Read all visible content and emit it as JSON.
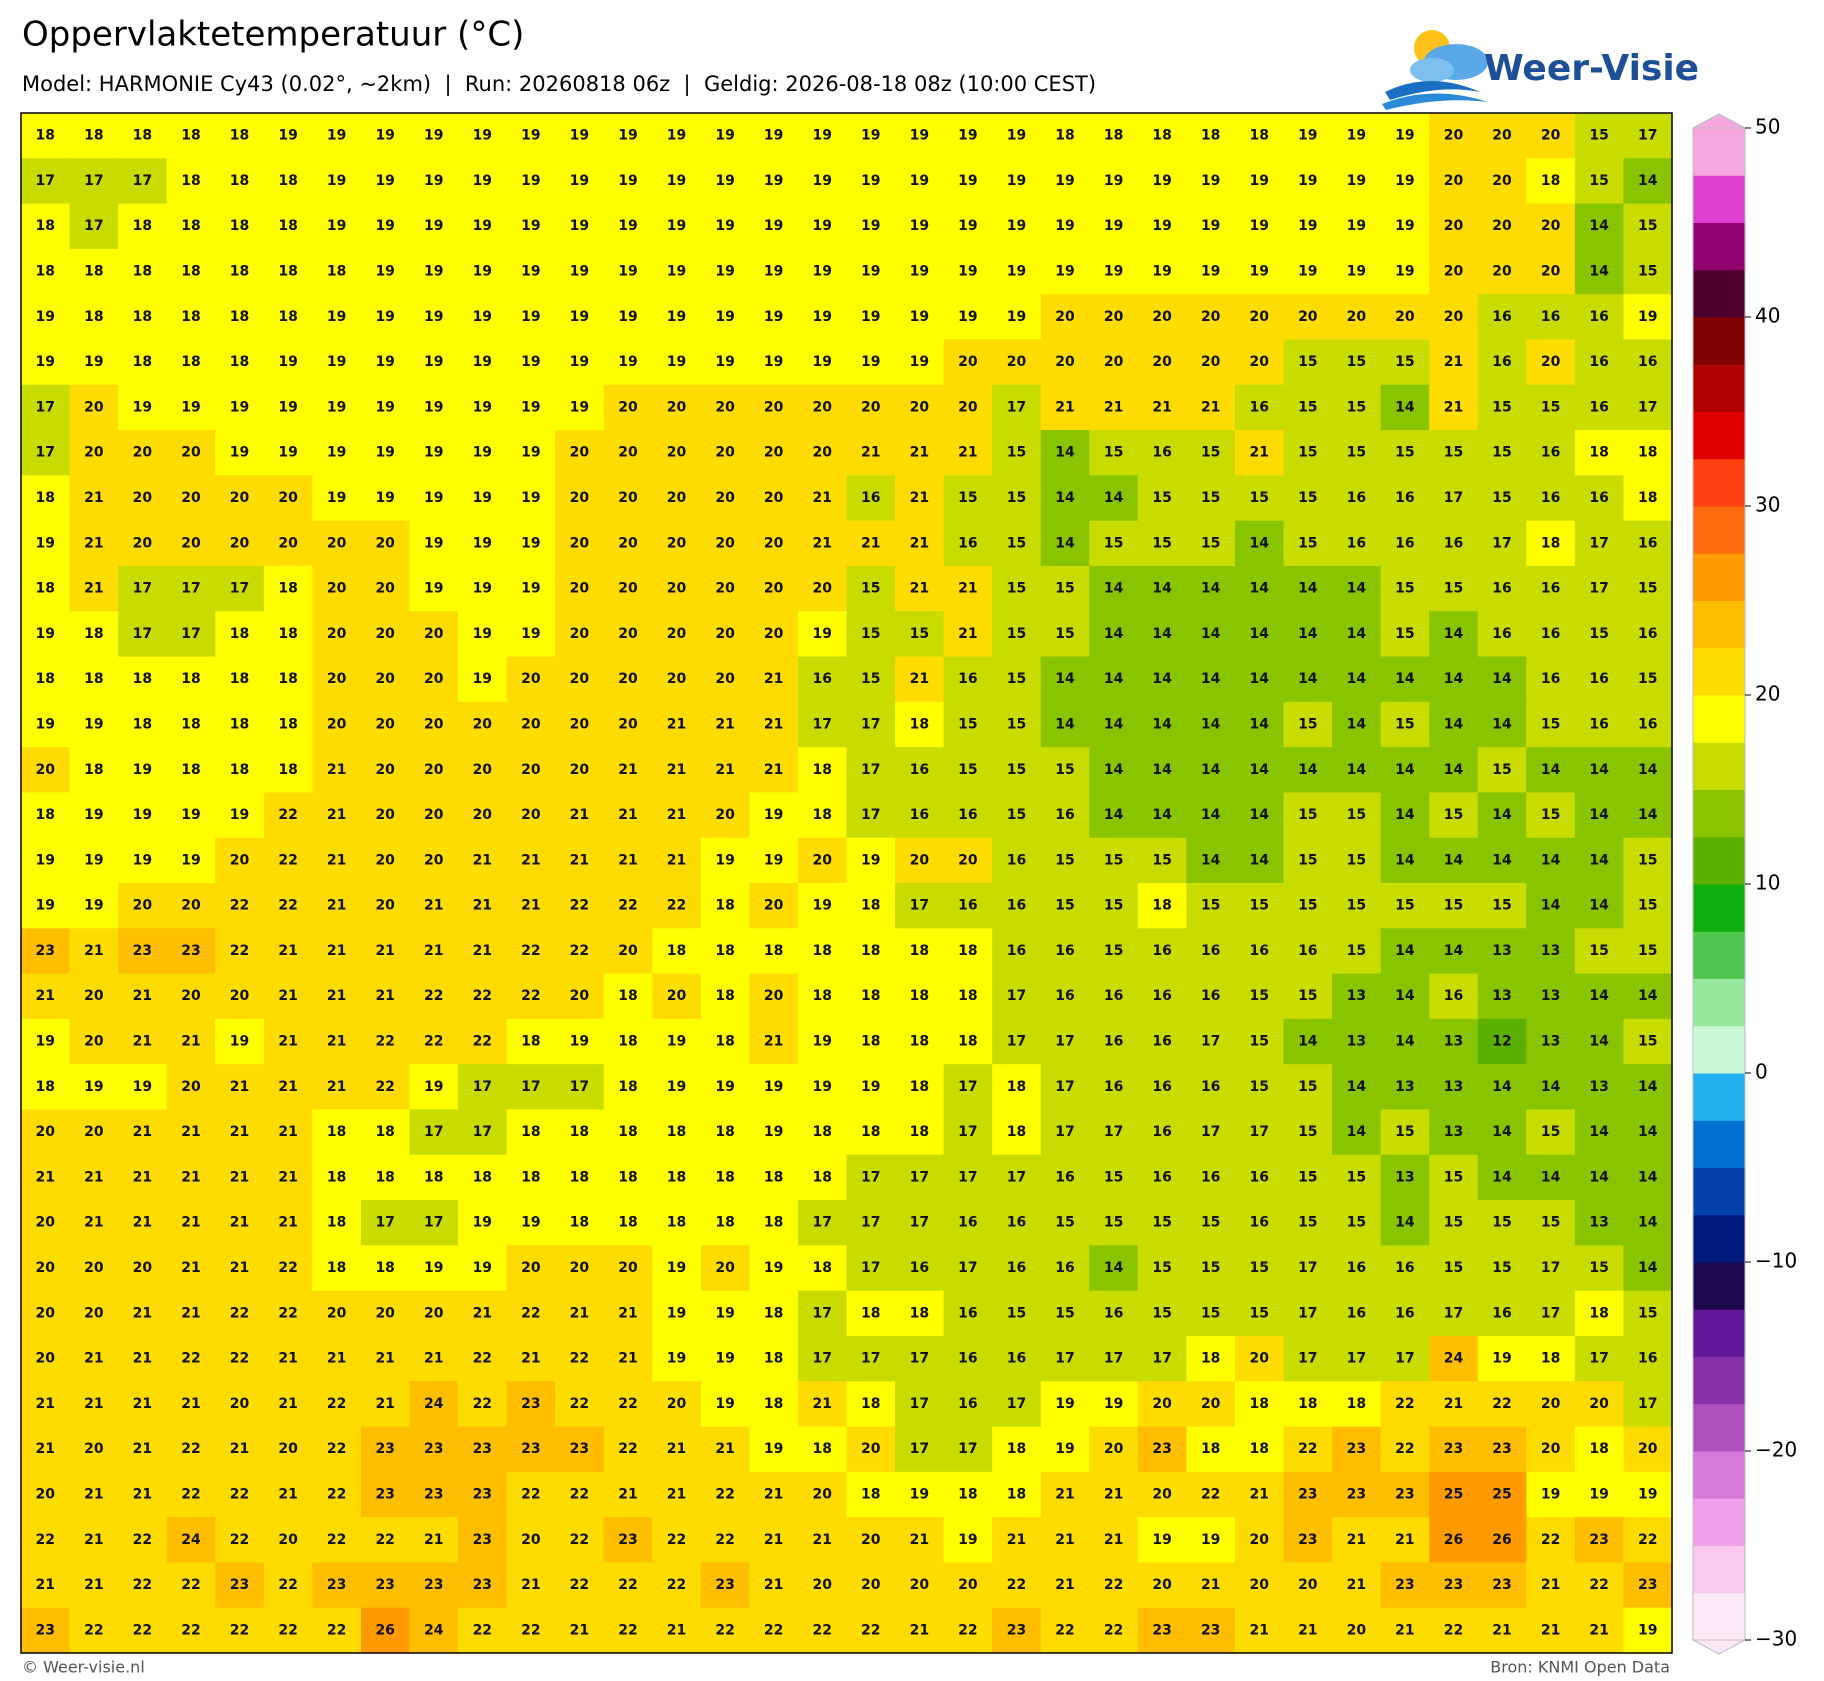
{
  "header": {
    "title": "Oppervlaktetemperatuur (°C)",
    "subtitle": "Model: HARMONIE Cy43 (0.02°, ~2km)  |  Run: 20260818 06z  |  Geldig: 2026-08-18 08z (10:00 CEST)",
    "logo": "Weer-Visie"
  },
  "footer": {
    "left": "© Weer-visie.nl",
    "right": "Bron: KNMI Open Data"
  },
  "colorbar": {
    "lim": [
      -30,
      50
    ],
    "ticks": [
      50,
      40,
      30,
      20,
      10,
      0,
      {
        "value": -10,
        "label": "−10"
      },
      {
        "value": -20,
        "label": "−20"
      },
      {
        "value": -30,
        "label": "−30"
      }
    ],
    "colors": [
      "#fde8f7",
      "#fbc8f0",
      "#f0a0e8",
      "#d878d8",
      "#b050c0",
      "#8830a8",
      "#601898",
      "#200850",
      "#001a80",
      "#0040a8",
      "#0070d0",
      "#20b0f0",
      "#c8f8d8",
      "#98e8a0",
      "#50c850",
      "#10b010",
      "#5cb000",
      "#88c400",
      "#c8dc00",
      "#ffff00",
      "#ffdc00",
      "#ffbe00",
      "#ff9a00",
      "#ff6c10",
      "#ff4010",
      "#e00000",
      "#b00000",
      "#800000",
      "#500030",
      "#900070",
      "#e040d0",
      "#f8a8e0"
    ]
  },
  "map": {
    "grid": [
      [
        18,
        18,
        18,
        18,
        18,
        19,
        19,
        19,
        19,
        19,
        19,
        19,
        19,
        19,
        19,
        19,
        19,
        19,
        19,
        19,
        19,
        18,
        18,
        18,
        18,
        18,
        19,
        19,
        19,
        20,
        20,
        20,
        15,
        17
      ],
      [
        17,
        17,
        17,
        18,
        18,
        18,
        19,
        19,
        19,
        19,
        19,
        19,
        19,
        19,
        19,
        19,
        19,
        19,
        19,
        19,
        19,
        19,
        19,
        19,
        19,
        19,
        19,
        19,
        19,
        20,
        20,
        18,
        15,
        14
      ],
      [
        18,
        17,
        18,
        18,
        18,
        18,
        19,
        19,
        19,
        19,
        19,
        19,
        19,
        19,
        19,
        19,
        19,
        19,
        19,
        19,
        19,
        19,
        19,
        19,
        19,
        19,
        19,
        19,
        19,
        20,
        20,
        20,
        14,
        15
      ],
      [
        18,
        18,
        18,
        18,
        18,
        18,
        18,
        19,
        19,
        19,
        19,
        19,
        19,
        19,
        19,
        19,
        19,
        19,
        19,
        19,
        19,
        19,
        19,
        19,
        19,
        19,
        19,
        19,
        19,
        20,
        20,
        20,
        14,
        15
      ],
      [
        19,
        18,
        18,
        18,
        18,
        18,
        19,
        19,
        19,
        19,
        19,
        19,
        19,
        19,
        19,
        19,
        19,
        19,
        19,
        19,
        19,
        20,
        20,
        20,
        20,
        20,
        20,
        20,
        20,
        20,
        16,
        16,
        16,
        19
      ],
      [
        19,
        19,
        18,
        18,
        18,
        19,
        19,
        19,
        19,
        19,
        19,
        19,
        19,
        19,
        19,
        19,
        19,
        19,
        19,
        20,
        20,
        20,
        20,
        20,
        20,
        20,
        15,
        15,
        15,
        21,
        16,
        20,
        16,
        16
      ],
      [
        17,
        20,
        19,
        19,
        19,
        19,
        19,
        19,
        19,
        19,
        19,
        19,
        20,
        20,
        20,
        20,
        20,
        20,
        20,
        20,
        17,
        21,
        21,
        21,
        21,
        16,
        15,
        15,
        14,
        21,
        15,
        15,
        16,
        17
      ],
      [
        17,
        20,
        20,
        20,
        19,
        19,
        19,
        19,
        19,
        19,
        19,
        20,
        20,
        20,
        20,
        20,
        20,
        21,
        21,
        21,
        15,
        14,
        15,
        16,
        15,
        21,
        15,
        15,
        15,
        15,
        15,
        16,
        18,
        18
      ],
      [
        18,
        21,
        20,
        20,
        20,
        20,
        19,
        19,
        19,
        19,
        19,
        20,
        20,
        20,
        20,
        20,
        21,
        16,
        21,
        15,
        15,
        14,
        14,
        15,
        15,
        15,
        15,
        16,
        16,
        17,
        15,
        16,
        16,
        18
      ],
      [
        19,
        21,
        20,
        20,
        20,
        20,
        20,
        20,
        19,
        19,
        19,
        20,
        20,
        20,
        20,
        20,
        21,
        21,
        21,
        16,
        15,
        14,
        15,
        15,
        15,
        14,
        15,
        16,
        16,
        16,
        17,
        18,
        17,
        16
      ],
      [
        18,
        21,
        17,
        17,
        17,
        18,
        20,
        20,
        19,
        19,
        19,
        20,
        20,
        20,
        20,
        20,
        20,
        15,
        21,
        21,
        15,
        15,
        14,
        14,
        14,
        14,
        14,
        14,
        15,
        15,
        16,
        16,
        17,
        15
      ],
      [
        19,
        18,
        17,
        17,
        18,
        18,
        20,
        20,
        20,
        19,
        19,
        20,
        20,
        20,
        20,
        20,
        19,
        15,
        15,
        21,
        15,
        15,
        14,
        14,
        14,
        14,
        14,
        14,
        15,
        14,
        16,
        16,
        15,
        16
      ],
      [
        18,
        18,
        18,
        18,
        18,
        18,
        20,
        20,
        20,
        19,
        20,
        20,
        20,
        20,
        20,
        21,
        16,
        15,
        21,
        16,
        15,
        14,
        14,
        14,
        14,
        14,
        14,
        14,
        14,
        14,
        14,
        16,
        16,
        15
      ],
      [
        19,
        19,
        18,
        18,
        18,
        18,
        20,
        20,
        20,
        20,
        20,
        20,
        20,
        21,
        21,
        21,
        17,
        17,
        18,
        15,
        15,
        14,
        14,
        14,
        14,
        14,
        15,
        14,
        15,
        14,
        14,
        15,
        16,
        16
      ],
      [
        20,
        18,
        19,
        18,
        18,
        18,
        21,
        20,
        20,
        20,
        20,
        20,
        21,
        21,
        21,
        21,
        18,
        17,
        16,
        15,
        15,
        15,
        14,
        14,
        14,
        14,
        14,
        14,
        14,
        14,
        15,
        14,
        14,
        14
      ],
      [
        18,
        19,
        19,
        19,
        19,
        22,
        21,
        20,
        20,
        20,
        20,
        21,
        21,
        21,
        20,
        19,
        18,
        17,
        16,
        16,
        15,
        16,
        14,
        14,
        14,
        14,
        15,
        15,
        14,
        15,
        14,
        15,
        14,
        14
      ],
      [
        19,
        19,
        19,
        19,
        20,
        22,
        21,
        20,
        20,
        21,
        21,
        21,
        21,
        21,
        19,
        19,
        20,
        19,
        20,
        20,
        16,
        15,
        15,
        15,
        14,
        14,
        15,
        15,
        14,
        14,
        14,
        14,
        14,
        15
      ],
      [
        19,
        19,
        20,
        20,
        22,
        22,
        21,
        20,
        21,
        21,
        21,
        22,
        22,
        22,
        18,
        20,
        19,
        18,
        17,
        16,
        16,
        15,
        15,
        18,
        15,
        15,
        15,
        15,
        15,
        15,
        15,
        14,
        14,
        15
      ],
      [
        23,
        21,
        23,
        23,
        22,
        21,
        21,
        21,
        21,
        21,
        22,
        22,
        20,
        18,
        18,
        18,
        18,
        18,
        18,
        18,
        16,
        16,
        15,
        16,
        16,
        16,
        16,
        15,
        14,
        14,
        13,
        13,
        15,
        15
      ],
      [
        21,
        20,
        21,
        20,
        20,
        21,
        21,
        21,
        22,
        22,
        22,
        20,
        18,
        20,
        18,
        20,
        18,
        18,
        18,
        18,
        17,
        16,
        16,
        16,
        16,
        15,
        15,
        13,
        14,
        16,
        13,
        13,
        14,
        14
      ],
      [
        19,
        20,
        21,
        21,
        19,
        21,
        21,
        22,
        22,
        22,
        18,
        19,
        18,
        19,
        18,
        21,
        19,
        18,
        18,
        18,
        17,
        17,
        16,
        16,
        17,
        15,
        14,
        13,
        14,
        13,
        12,
        13,
        14,
        15
      ],
      [
        18,
        19,
        19,
        20,
        21,
        21,
        21,
        22,
        19,
        17,
        17,
        17,
        18,
        19,
        19,
        19,
        19,
        19,
        18,
        17,
        18,
        17,
        16,
        16,
        16,
        15,
        15,
        14,
        13,
        13,
        14,
        14,
        13,
        14
      ],
      [
        20,
        20,
        21,
        21,
        21,
        21,
        18,
        18,
        17,
        17,
        18,
        18,
        18,
        18,
        18,
        19,
        18,
        18,
        18,
        17,
        18,
        17,
        17,
        16,
        17,
        17,
        15,
        14,
        15,
        13,
        14,
        15,
        14,
        14
      ],
      [
        21,
        21,
        21,
        21,
        21,
        21,
        18,
        18,
        18,
        18,
        18,
        18,
        18,
        18,
        18,
        18,
        18,
        17,
        17,
        17,
        17,
        16,
        15,
        16,
        16,
        16,
        15,
        15,
        13,
        15,
        14,
        14,
        14,
        14
      ],
      [
        20,
        21,
        21,
        21,
        21,
        21,
        18,
        17,
        17,
        19,
        19,
        18,
        18,
        18,
        18,
        18,
        17,
        17,
        17,
        16,
        16,
        15,
        15,
        15,
        15,
        16,
        15,
        15,
        14,
        15,
        15,
        15,
        13,
        14
      ],
      [
        20,
        20,
        20,
        21,
        21,
        22,
        18,
        18,
        19,
        19,
        20,
        20,
        20,
        19,
        20,
        19,
        18,
        17,
        16,
        17,
        16,
        16,
        14,
        15,
        15,
        15,
        17,
        16,
        16,
        15,
        15,
        17,
        15,
        14
      ],
      [
        20,
        20,
        21,
        21,
        22,
        22,
        20,
        20,
        20,
        21,
        22,
        21,
        21,
        19,
        19,
        18,
        17,
        18,
        18,
        16,
        15,
        15,
        16,
        15,
        15,
        15,
        17,
        16,
        16,
        17,
        16,
        17,
        18,
        15
      ],
      [
        20,
        21,
        21,
        22,
        22,
        21,
        21,
        21,
        21,
        22,
        21,
        22,
        21,
        19,
        19,
        18,
        17,
        17,
        17,
        16,
        16,
        17,
        17,
        17,
        18,
        20,
        17,
        17,
        17,
        24,
        19,
        18,
        17,
        16
      ],
      [
        21,
        21,
        21,
        21,
        20,
        21,
        22,
        21,
        24,
        22,
        23,
        22,
        22,
        20,
        19,
        18,
        21,
        18,
        17,
        16,
        17,
        19,
        19,
        20,
        20,
        18,
        18,
        18,
        22,
        21,
        22,
        20,
        20,
        17
      ],
      [
        21,
        20,
        21,
        22,
        21,
        20,
        22,
        23,
        23,
        23,
        23,
        23,
        22,
        21,
        21,
        19,
        18,
        20,
        17,
        17,
        18,
        19,
        20,
        23,
        18,
        18,
        22,
        23,
        22,
        23,
        23,
        20,
        18,
        20
      ],
      [
        20,
        21,
        21,
        22,
        22,
        21,
        22,
        23,
        23,
        23,
        22,
        22,
        21,
        21,
        22,
        21,
        20,
        18,
        19,
        18,
        18,
        21,
        21,
        20,
        22,
        21,
        23,
        23,
        23,
        25,
        25,
        19,
        19,
        19
      ],
      [
        22,
        21,
        22,
        24,
        22,
        20,
        22,
        22,
        21,
        23,
        20,
        22,
        23,
        22,
        22,
        21,
        21,
        20,
        21,
        19,
        21,
        21,
        21,
        19,
        19,
        20,
        23,
        21,
        21,
        26,
        26,
        22,
        23,
        22
      ],
      [
        21,
        21,
        22,
        22,
        23,
        22,
        23,
        23,
        23,
        23,
        21,
        22,
        22,
        22,
        23,
        21,
        20,
        20,
        20,
        20,
        22,
        21,
        22,
        20,
        21,
        20,
        20,
        21,
        23,
        23,
        23,
        21,
        22,
        23
      ],
      [
        23,
        22,
        22,
        22,
        22,
        22,
        22,
        26,
        24,
        22,
        22,
        21,
        22,
        21,
        22,
        22,
        22,
        22,
        21,
        22,
        23,
        22,
        22,
        23,
        23,
        21,
        21,
        20,
        21,
        22,
        21,
        21,
        21,
        19
      ]
    ]
  }
}
